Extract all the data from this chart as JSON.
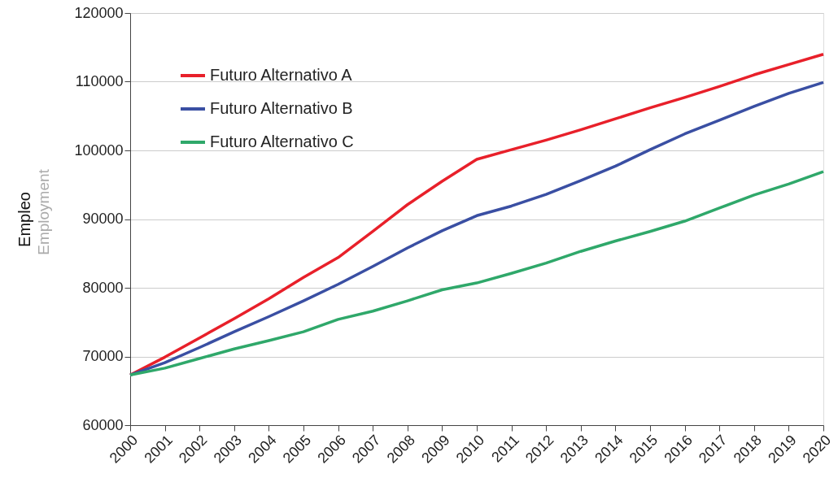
{
  "chart_data": {
    "type": "line",
    "ylabel": "Empleo",
    "annotations": [
      "Employment"
    ],
    "x": [
      2000,
      2001,
      2002,
      2003,
      2004,
      2005,
      2006,
      2007,
      2008,
      2009,
      2010,
      2011,
      2012,
      2013,
      2014,
      2015,
      2016,
      2017,
      2018,
      2019,
      2020
    ],
    "series": [
      {
        "name": "Futuro Alternativo A",
        "color": "#e8202a",
        "values": [
          67300,
          69900,
          72700,
          75500,
          78400,
          81500,
          84400,
          88200,
          92100,
          95500,
          98700,
          100100,
          101500,
          103000,
          104600,
          106200,
          107700,
          109300,
          111000,
          112500,
          114000
        ]
      },
      {
        "name": "Futuro Alternativo B",
        "color": "#3a4fa3",
        "values": [
          67300,
          69100,
          71300,
          73600,
          75800,
          78100,
          80500,
          83100,
          85800,
          88300,
          90500,
          91900,
          93600,
          95600,
          97700,
          100100,
          102400,
          104400,
          106400,
          108300,
          109900
        ]
      },
      {
        "name": "Futuro Alternativo C",
        "color": "#2fa86a",
        "values": [
          67300,
          68300,
          69700,
          71100,
          72300,
          73600,
          75400,
          76600,
          78100,
          79700,
          80700,
          82100,
          83600,
          85300,
          86800,
          88200,
          89700,
          91600,
          93500,
          95100,
          96900
        ]
      }
    ],
    "xlim": [
      2000,
      2020
    ],
    "xticks": [
      2000,
      2001,
      2002,
      2003,
      2004,
      2005,
      2006,
      2007,
      2008,
      2009,
      2010,
      2011,
      2012,
      2013,
      2014,
      2015,
      2016,
      2017,
      2018,
      2019,
      2020
    ],
    "ylim": [
      60000,
      120000
    ],
    "yticks": [
      60000,
      70000,
      80000,
      90000,
      100000,
      110000,
      120000
    ],
    "grid": "y",
    "legend": "top left",
    "marker": "none",
    "line_style": "solid"
  }
}
